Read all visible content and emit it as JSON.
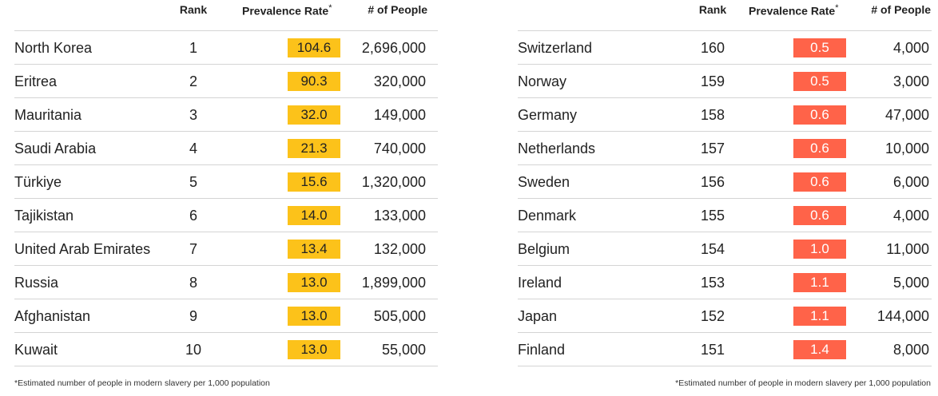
{
  "chart_data": [
    {
      "type": "table",
      "columns": [
        "",
        "Rank",
        "Prevalence Rate",
        "# of People"
      ],
      "rate_marker": "*",
      "rate_color": "#fcc21a",
      "rows": [
        {
          "country": "North Korea",
          "rank": "1",
          "rate": "104.6",
          "people": "2,696,000"
        },
        {
          "country": "Eritrea",
          "rank": "2",
          "rate": "90.3",
          "people": "320,000"
        },
        {
          "country": "Mauritania",
          "rank": "3",
          "rate": "32.0",
          "people": "149,000"
        },
        {
          "country": "Saudi Arabia",
          "rank": "4",
          "rate": "21.3",
          "people": "740,000"
        },
        {
          "country": "Türkiye",
          "rank": "5",
          "rate": "15.6",
          "people": "1,320,000"
        },
        {
          "country": "Tajikistan",
          "rank": "6",
          "rate": "14.0",
          "people": "133,000"
        },
        {
          "country": "United Arab Emirates",
          "rank": "7",
          "rate": "13.4",
          "people": "132,000"
        },
        {
          "country": "Russia",
          "rank": "8",
          "rate": "13.0",
          "people": "1,899,000"
        },
        {
          "country": "Afghanistan",
          "rank": "9",
          "rate": "13.0",
          "people": "505,000"
        },
        {
          "country": "Kuwait",
          "rank": "10",
          "rate": "13.0",
          "people": "55,000"
        }
      ],
      "footnote": "*Estimated number of people in modern slavery per 1,000 population"
    },
    {
      "type": "table",
      "columns": [
        "",
        "Rank",
        "Prevalence Rate",
        "# of People"
      ],
      "rate_marker": "*",
      "rate_color": "#ff6349",
      "rows": [
        {
          "country": "Switzerland",
          "rank": "160",
          "rate": "0.5",
          "people": "4,000"
        },
        {
          "country": "Norway",
          "rank": "159",
          "rate": "0.5",
          "people": "3,000"
        },
        {
          "country": "Germany",
          "rank": "158",
          "rate": "0.6",
          "people": "47,000"
        },
        {
          "country": "Netherlands",
          "rank": "157",
          "rate": "0.6",
          "people": "10,000"
        },
        {
          "country": "Sweden",
          "rank": "156",
          "rate": "0.6",
          "people": "6,000"
        },
        {
          "country": "Denmark",
          "rank": "155",
          "rate": "0.6",
          "people": "4,000"
        },
        {
          "country": "Belgium",
          "rank": "154",
          "rate": "1.0",
          "people": "11,000"
        },
        {
          "country": "Ireland",
          "rank": "153",
          "rate": "1.1",
          "people": "5,000"
        },
        {
          "country": "Japan",
          "rank": "152",
          "rate": "1.1",
          "people": "144,000"
        },
        {
          "country": "Finland",
          "rank": "151",
          "rate": "1.4",
          "people": "8,000"
        }
      ],
      "footnote": "*Estimated number of people in modern slavery per 1,000 population"
    }
  ]
}
